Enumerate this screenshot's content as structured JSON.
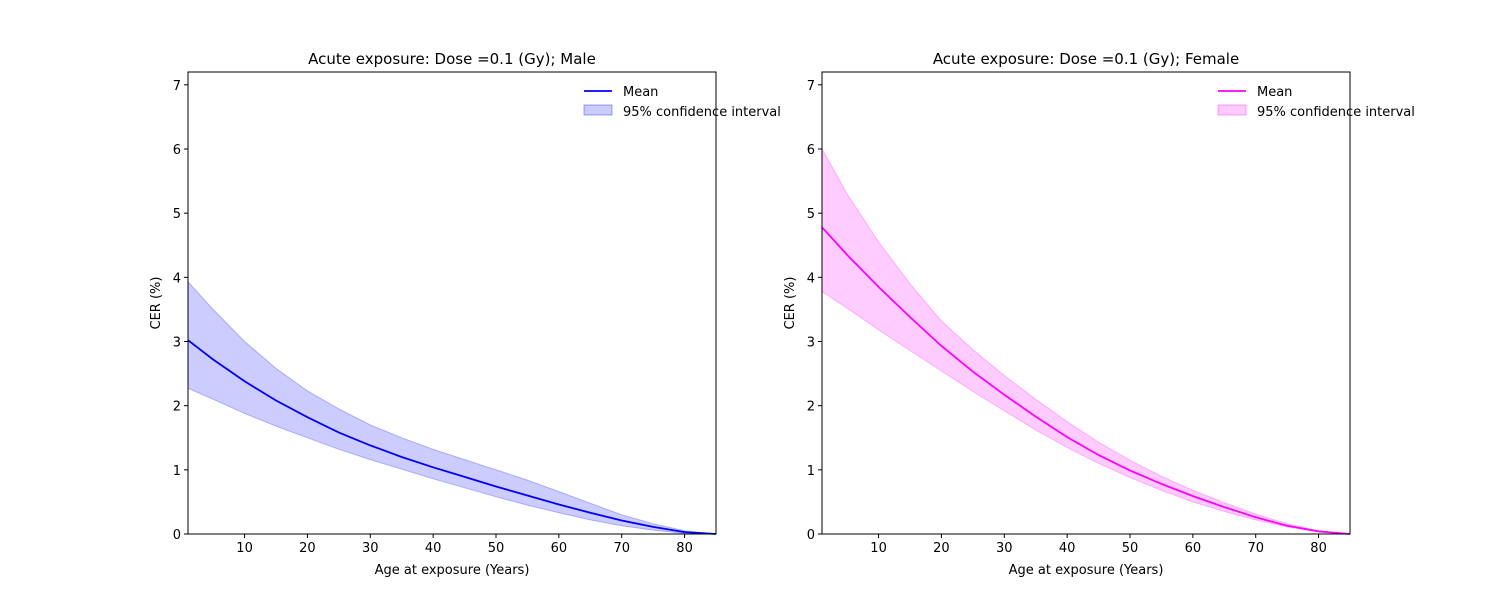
{
  "chart_data": [
    {
      "type": "line",
      "title": "Acute exposure: Dose =0.1 (Gy); Male",
      "xlabel": "Age at exposure (Years)",
      "ylabel": "CER (%)",
      "xlim": [
        1,
        85
      ],
      "ylim": [
        0,
        7.2
      ],
      "xticks": [
        10,
        20,
        30,
        40,
        50,
        60,
        70,
        80
      ],
      "yticks": [
        0,
        1,
        2,
        3,
        4,
        5,
        6,
        7
      ],
      "grid": false,
      "legend_position": "top-right",
      "color": "#0000ff",
      "band_color": "#0000ff",
      "x": [
        1,
        5,
        10,
        15,
        20,
        25,
        30,
        35,
        40,
        45,
        50,
        55,
        60,
        65,
        70,
        75,
        80,
        85
      ],
      "series": [
        {
          "name": "Mean",
          "role": "line",
          "values": [
            3.02,
            2.72,
            2.38,
            2.08,
            1.82,
            1.58,
            1.38,
            1.2,
            1.04,
            0.89,
            0.74,
            0.6,
            0.46,
            0.33,
            0.21,
            0.11,
            0.03,
            0.0
          ]
        },
        {
          "name": "95% confidence interval",
          "role": "band",
          "lower": [
            2.27,
            2.1,
            1.88,
            1.68,
            1.5,
            1.32,
            1.16,
            1.01,
            0.86,
            0.72,
            0.58,
            0.45,
            0.33,
            0.22,
            0.13,
            0.06,
            0.01,
            0.0
          ],
          "upper": [
            3.93,
            3.5,
            3.0,
            2.58,
            2.23,
            1.95,
            1.7,
            1.5,
            1.32,
            1.16,
            1.0,
            0.84,
            0.66,
            0.48,
            0.3,
            0.16,
            0.05,
            0.0
          ]
        }
      ]
    },
    {
      "type": "line",
      "title": "Acute exposure: Dose =0.1 (Gy); Female",
      "xlabel": "Age at exposure (Years)",
      "ylabel": "CER (%)",
      "xlim": [
        1,
        85
      ],
      "ylim": [
        0,
        7.2
      ],
      "xticks": [
        10,
        20,
        30,
        40,
        50,
        60,
        70,
        80
      ],
      "yticks": [
        0,
        1,
        2,
        3,
        4,
        5,
        6,
        7
      ],
      "grid": false,
      "legend_position": "top-right",
      "color": "#ff00ff",
      "band_color": "#ff00ff",
      "x": [
        1,
        5,
        10,
        15,
        20,
        25,
        30,
        35,
        40,
        45,
        50,
        55,
        60,
        65,
        70,
        75,
        80,
        85
      ],
      "series": [
        {
          "name": "Mean",
          "role": "line",
          "values": [
            4.78,
            4.35,
            3.85,
            3.38,
            2.93,
            2.53,
            2.17,
            1.83,
            1.51,
            1.23,
            0.99,
            0.78,
            0.59,
            0.42,
            0.26,
            0.13,
            0.04,
            0.0
          ]
        },
        {
          "name": "95% confidence interval",
          "role": "band",
          "lower": [
            3.78,
            3.52,
            3.18,
            2.86,
            2.54,
            2.22,
            1.92,
            1.62,
            1.35,
            1.1,
            0.88,
            0.68,
            0.5,
            0.35,
            0.22,
            0.11,
            0.03,
            0.0
          ],
          "upper": [
            6.0,
            5.3,
            4.55,
            3.9,
            3.32,
            2.87,
            2.47,
            2.1,
            1.75,
            1.43,
            1.15,
            0.9,
            0.68,
            0.49,
            0.31,
            0.16,
            0.05,
            0.0
          ]
        }
      ]
    }
  ]
}
